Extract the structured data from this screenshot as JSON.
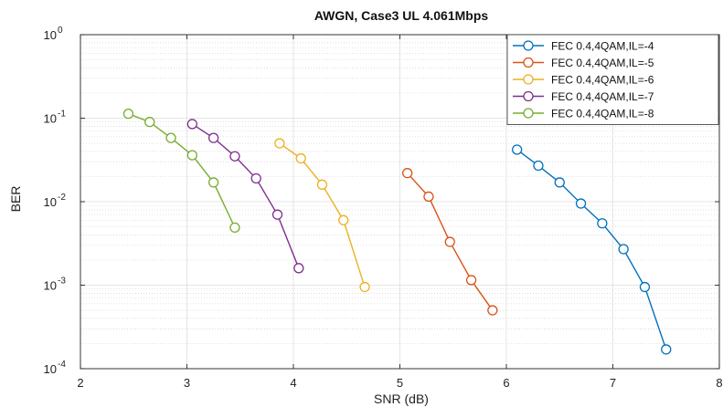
{
  "chart_data": {
    "type": "line",
    "title": "AWGN, Case3 UL 4.061Mbps",
    "xlabel": "SNR (dB)",
    "ylabel": "BER",
    "xlim": [
      2,
      8
    ],
    "ylim": [
      0.0001,
      1
    ],
    "yscale": "log",
    "grid": true,
    "minor_grid": true,
    "legend_position": "top-right",
    "xticks": [
      2,
      3,
      4,
      5,
      6,
      7,
      8
    ],
    "xtick_labels": [
      "2",
      "3",
      "4",
      "5",
      "6",
      "7",
      "8"
    ],
    "yticks": [
      {
        "value": 1,
        "base": "10",
        "exp": "0"
      },
      {
        "value": 0.1,
        "base": "10",
        "exp": "-1"
      },
      {
        "value": 0.01,
        "base": "10",
        "exp": "-2"
      },
      {
        "value": 0.001,
        "base": "10",
        "exp": "-3"
      },
      {
        "value": 0.0001,
        "base": "10",
        "exp": "-4"
      }
    ],
    "series": [
      {
        "name": "FEC 0.4,4QAM,IL=-4",
        "color": "#0072BD",
        "x": [
          6.1,
          6.3,
          6.5,
          6.7,
          6.9,
          7.1,
          7.3,
          7.5
        ],
        "y": [
          0.042,
          0.027,
          0.017,
          0.0095,
          0.0055,
          0.0027,
          0.00095,
          0.00017
        ]
      },
      {
        "name": "FEC 0.4,4QAM,IL=-5",
        "color": "#D95319",
        "x": [
          5.07,
          5.27,
          5.47,
          5.67,
          5.87
        ],
        "y": [
          0.022,
          0.0115,
          0.0033,
          0.00115,
          0.0005
        ]
      },
      {
        "name": "FEC 0.4,4QAM,IL=-6",
        "color": "#EDB120",
        "x": [
          3.87,
          4.07,
          4.27,
          4.47,
          4.67
        ],
        "y": [
          0.05,
          0.033,
          0.016,
          0.006,
          0.00095
        ]
      },
      {
        "name": "FEC 0.4,4QAM,IL=-7",
        "color": "#7E2F8E",
        "x": [
          3.05,
          3.25,
          3.45,
          3.65,
          3.85,
          4.05
        ],
        "y": [
          0.085,
          0.058,
          0.035,
          0.019,
          0.007,
          0.0016
        ]
      },
      {
        "name": "FEC 0.4,4QAM,IL=-8",
        "color": "#77AC30",
        "x": [
          2.45,
          2.65,
          2.85,
          3.05,
          3.25,
          3.45
        ],
        "y": [
          0.113,
          0.09,
          0.058,
          0.036,
          0.017,
          0.0049
        ]
      }
    ]
  }
}
